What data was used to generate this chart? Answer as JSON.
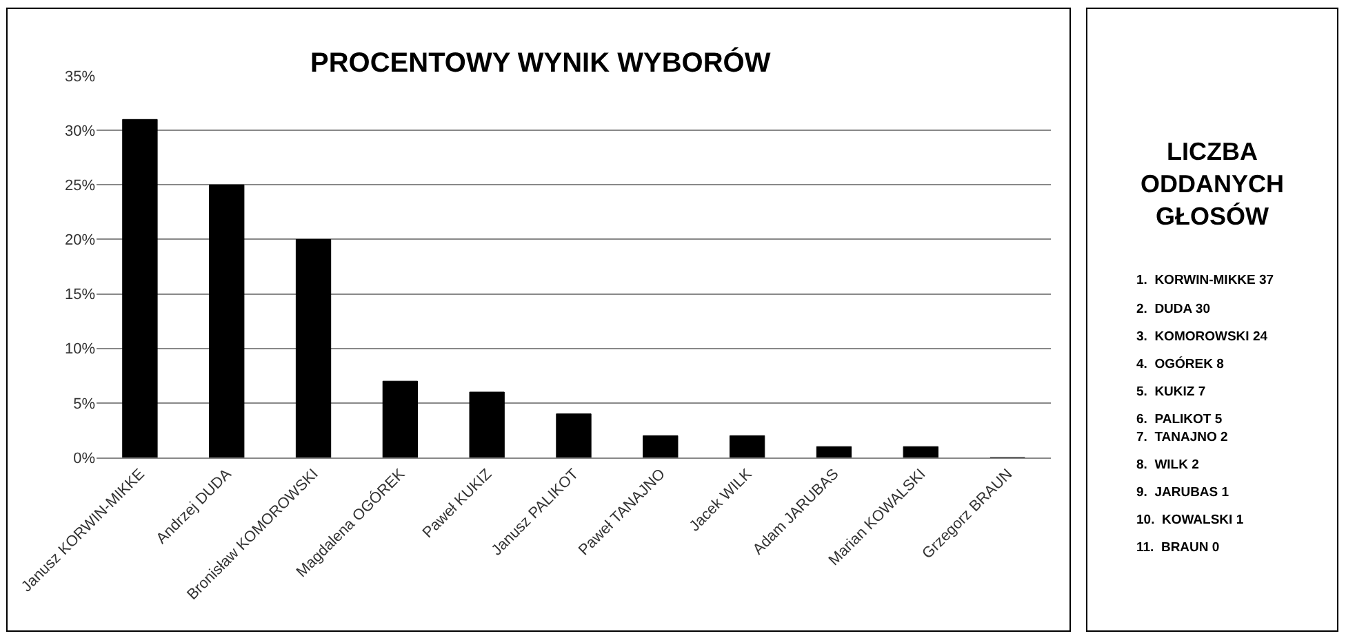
{
  "chart_data": [
    {
      "type": "bar",
      "title": "PROCENTOWY WYNIK WYBORÓW",
      "categories": [
        "Janusz KORWIN-MIKKE",
        "Andrzej DUDA",
        "Bronisław KOMOROWSKI",
        "Magdalena OGÓREK",
        "Paweł KUKIZ",
        "Janusz PALIKOT",
        "Paweł TANAJNO",
        "Jacek WILK",
        "Adam JARUBAS",
        "Marian KOWALSKI",
        "Grzegorz BRAUN"
      ],
      "values": [
        31,
        25,
        20,
        7,
        6,
        4,
        2,
        2,
        1,
        1,
        0
      ],
      "color": "#000000",
      "ylim": [
        0,
        35
      ],
      "yticks": [
        {
          "value": 0,
          "label": "0%"
        },
        {
          "value": 5,
          "label": "5%"
        },
        {
          "value": 10,
          "label": "10%"
        },
        {
          "value": 15,
          "label": "15%"
        },
        {
          "value": 20,
          "label": "20%"
        },
        {
          "value": 25,
          "label": "25%"
        },
        {
          "value": 30,
          "label": "30%"
        },
        {
          "value": 35,
          "label": "35%"
        }
      ],
      "grid": "y"
    },
    {
      "type": "other",
      "title": "LICZBA ODDANYCH GŁOSÓW",
      "annotations": [
        "1.  KORWIN-MIKKE 37",
        "2.  DUDA 30",
        "3.  KOMOROWSKI 24",
        "4.  OGÓREK 8",
        "5.  KUKIZ 7",
        "6.  PALIKOT 5",
        "7.  TANAJNO 2",
        "8.  WILK 2",
        "9.  JARUBAS 1",
        "10.  KOWALSKI 1",
        "11.  BRAUN 0"
      ]
    }
  ]
}
